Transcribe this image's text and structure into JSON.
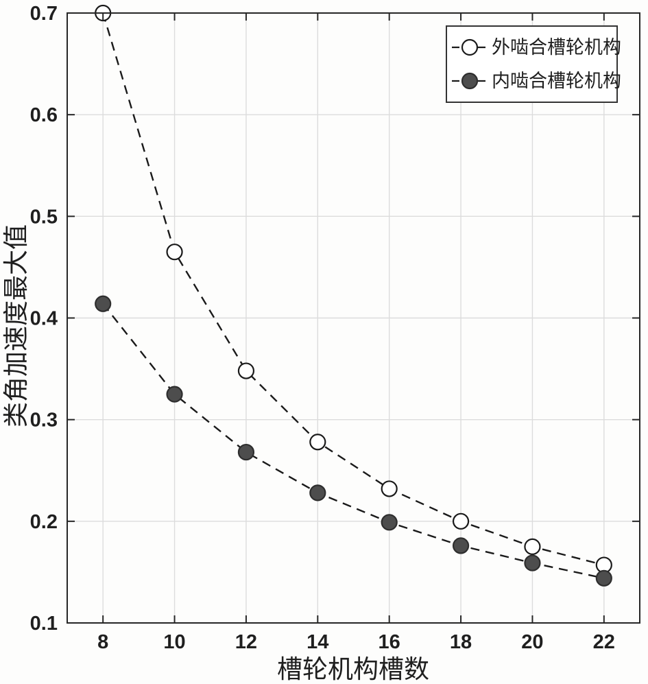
{
  "figure": {
    "background_color": "#fdfdfc",
    "axis_color": "#262626",
    "grid_color": "#dcdcdc",
    "text_color": "#1f1f1f"
  },
  "chart_data": {
    "type": "line",
    "title": "",
    "xlabel": "槽轮机构槽数",
    "ylabel": "类角加速度最大值",
    "x": [
      8,
      10,
      12,
      14,
      16,
      18,
      20,
      22
    ],
    "series": [
      {
        "name": "外啮合槽轮机构",
        "marker": "open-circle",
        "marker_fill": "#ffffff",
        "marker_stroke": "#1a1a1a",
        "line_color": "#1a1a1a",
        "line_style": "dashed",
        "values": [
          0.7,
          0.465,
          0.348,
          0.278,
          0.232,
          0.2,
          0.175,
          0.157
        ]
      },
      {
        "name": "内啮合槽轮机构",
        "marker": "filled-circle",
        "marker_fill": "#4d4d4d",
        "marker_stroke": "#2e2e2e",
        "line_color": "#1a1a1a",
        "line_style": "dashed",
        "values": [
          0.414,
          0.325,
          0.268,
          0.228,
          0.199,
          0.176,
          0.159,
          0.144
        ]
      }
    ],
    "xlim": [
      7,
      23
    ],
    "ylim": [
      0.1,
      0.7
    ],
    "x_ticks": [
      8,
      10,
      12,
      14,
      16,
      18,
      20,
      22
    ],
    "y_ticks": [
      0.1,
      0.2,
      0.3,
      0.4,
      0.5,
      0.6,
      0.7
    ],
    "y_tick_decimals": 1,
    "grid": true,
    "legend_position": "top-right"
  }
}
